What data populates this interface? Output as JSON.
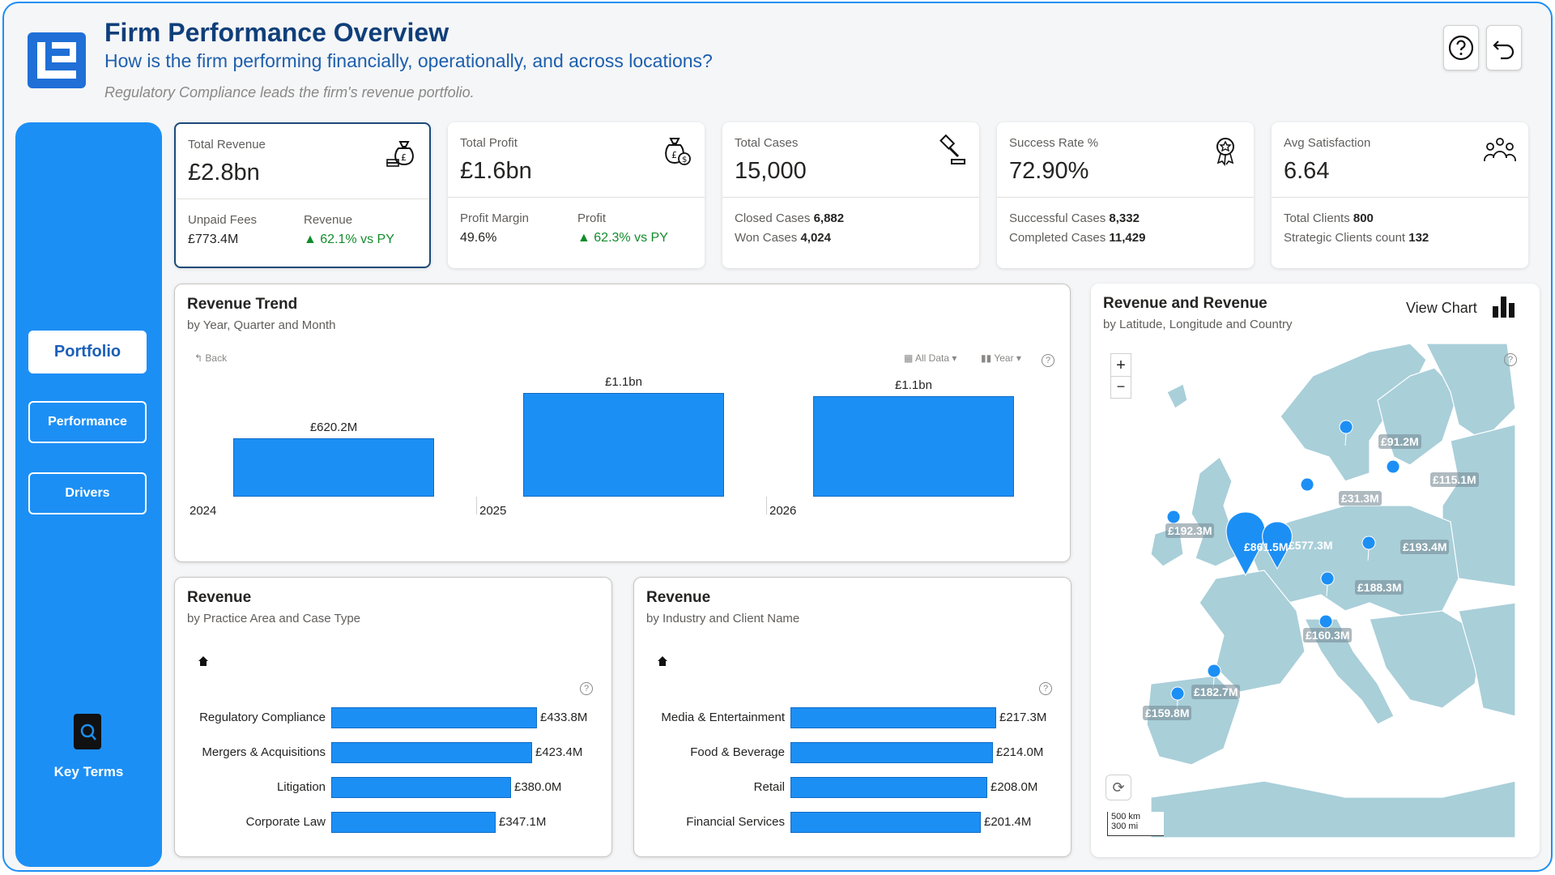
{
  "header": {
    "title": "Firm Performance Overview",
    "subtitle": "How is the firm performing financially, operationally, and across locations?",
    "insight": "Regulatory Compliance leads the firm's revenue portfolio."
  },
  "sidebar": {
    "nav": [
      {
        "label": "Portfolio",
        "active": true
      },
      {
        "label": "Performance",
        "active": false
      },
      {
        "label": "Drivers",
        "active": false
      }
    ],
    "key_terms_label": "Key Terms"
  },
  "kpis": {
    "revenue": {
      "label": "Total Revenue",
      "value": "£2.8bn",
      "sub1_label": "Unpaid Fees",
      "sub1_value": "£773.4M",
      "sub2_label": "Revenue",
      "sub2_value": "▲ 62.1% vs PY"
    },
    "profit": {
      "label": "Total Profit",
      "value": "£1.6bn",
      "sub1_label": "Profit Margin",
      "sub1_value": "49.6%",
      "sub2_label": "Profit",
      "sub2_value": "▲ 62.3% vs PY"
    },
    "cases": {
      "label": "Total Cases",
      "value": "15,000",
      "line1_label": "Closed Cases",
      "line1_value": "6,882",
      "line2_label": "Won Cases",
      "line2_value": "4,024"
    },
    "success": {
      "label": "Success Rate %",
      "value": "72.90%",
      "line1_label": "Successful Cases",
      "line1_value": "8,332",
      "line2_label": "Completed Cases",
      "line2_value": "11,429"
    },
    "satisfaction": {
      "label": "Avg Satisfaction",
      "value": "6.64",
      "line1_label": "Total Clients",
      "line1_value": "800",
      "line2_label": "Strategic Clients count",
      "line2_value": "132"
    }
  },
  "trend": {
    "title": "Revenue Trend",
    "subtitle": "by Year, Quarter and Month",
    "back_label": "Back",
    "filter_label": "All Data",
    "level_label": "Year"
  },
  "practice": {
    "title": "Revenue",
    "subtitle": "by Practice Area and Case Type"
  },
  "industry": {
    "title": "Revenue",
    "subtitle": "by Industry and Client Name"
  },
  "map": {
    "title": "Revenue and Revenue",
    "subtitle": "by Latitude, Longitude and Country",
    "view_chart_label": "View Chart",
    "scale_km": "500 km",
    "scale_mi": "300 mi",
    "zoom_in": "+",
    "zoom_out": "−",
    "markers": [
      "£91.2M",
      "£115.1M",
      "£31.3M",
      "£192.3M",
      "£861.5M",
      "£577.3M",
      "£193.4M",
      "£188.3M",
      "£160.3M",
      "£182.7M",
      "£159.8M"
    ]
  },
  "colors": {
    "accent": "#1c8ff5",
    "positive": "#118c2b",
    "title": "#0f3f7a"
  },
  "chart_data": [
    {
      "type": "bar",
      "title": "Revenue Trend",
      "categories": [
        "2024",
        "2025",
        "2026"
      ],
      "values": [
        620.2,
        1100,
        1060
      ],
      "value_labels": [
        "£620.2M",
        "£1.1bn",
        "£1.1bn"
      ],
      "unit": "£M"
    },
    {
      "type": "bar",
      "orientation": "horizontal",
      "title": "Revenue",
      "categories": [
        "Regulatory Compliance",
        "Mergers & Acquisitions",
        "Litigation",
        "Corporate Law"
      ],
      "values": [
        433.8,
        423.4,
        380.0,
        347.1
      ],
      "value_labels": [
        "£433.8M",
        "£423.4M",
        "£380.0M",
        "£347.1M"
      ],
      "unit": "£M"
    },
    {
      "type": "bar",
      "orientation": "horizontal",
      "title": "Revenue",
      "categories": [
        "Media & Entertainment",
        "Food & Beverage",
        "Retail",
        "Financial Services"
      ],
      "values": [
        217.3,
        214.0,
        208.0,
        201.4
      ],
      "value_labels": [
        "£217.3M",
        "£214.0M",
        "£208.0M",
        "£201.4M"
      ],
      "unit": "£M"
    }
  ]
}
